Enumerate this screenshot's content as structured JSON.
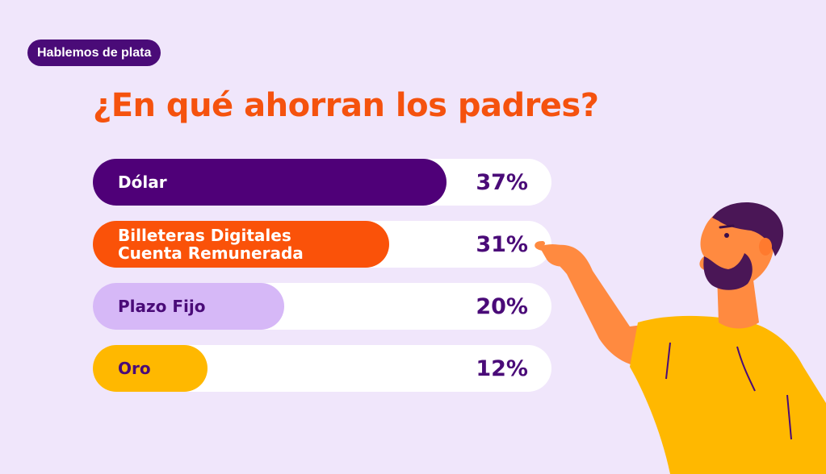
{
  "badge": "Hablemos de plata",
  "title": "¿En qué ahorran los padres?",
  "colors": {
    "background": "#f0e6fb",
    "badge": "#4a0b78",
    "title": "#f5520e",
    "percent_text": "#4a0b78"
  },
  "chart_data": {
    "type": "bar",
    "orientation": "horizontal",
    "categories": [
      [
        "Dólar"
      ],
      [
        "Billeteras Digitales",
        "Cuenta Remunerada"
      ],
      [
        "Plazo Fijo"
      ],
      [
        "Oro"
      ]
    ],
    "values": [
      37,
      31,
      20,
      12
    ],
    "value_labels": [
      "37%",
      "31%",
      "20%",
      "12%"
    ],
    "bar_colors": [
      "#4f0078",
      "#fa5209",
      "#d6b8f7",
      "#ffb800"
    ],
    "label_colors": [
      "#ffffff",
      "#ffffff",
      "#4a0b78",
      "#4a0b78"
    ],
    "xlim": [
      0,
      48
    ]
  }
}
